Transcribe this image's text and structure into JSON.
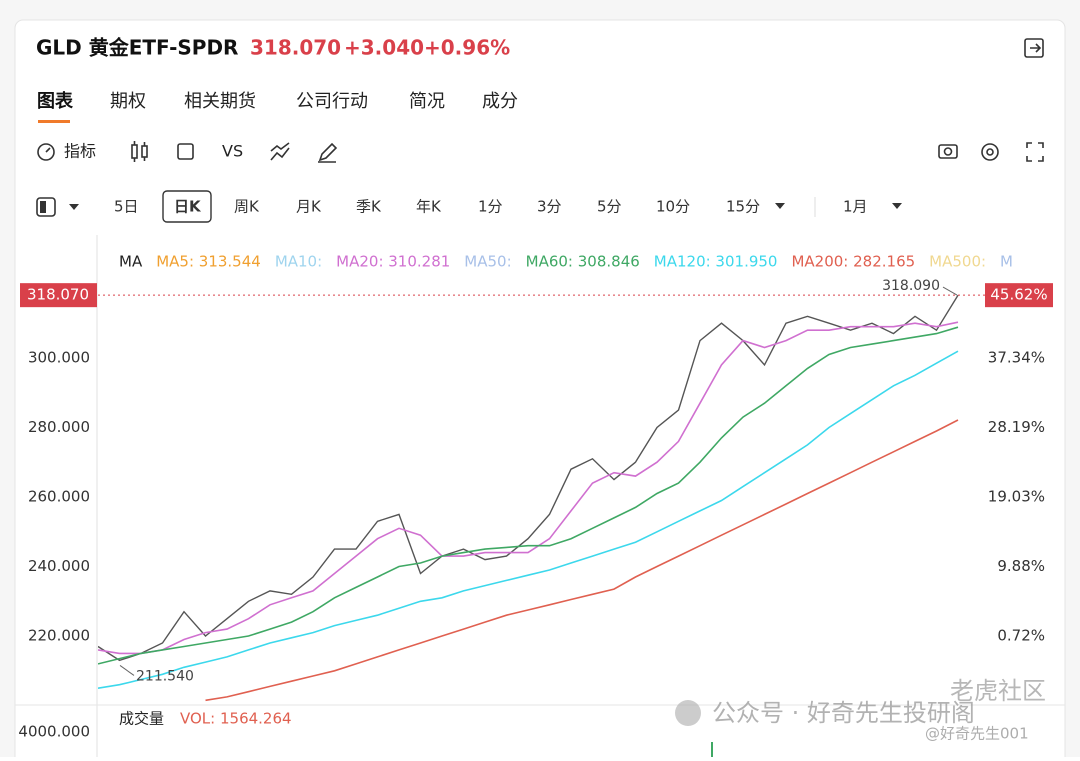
{
  "header": {
    "symbol": "GLD 黄金ETF-SPDR",
    "price": "318.070",
    "change": "+3.040",
    "change_pct": "+0.96%"
  },
  "tabs": [
    "图表",
    "期权",
    "相关期货",
    "公司行动",
    "简况",
    "成分"
  ],
  "toolbar": {
    "indicator": "指标",
    "vs": "VS"
  },
  "periods": [
    "5日",
    "日K",
    "周K",
    "月K",
    "季K",
    "年K",
    "1分",
    "3分",
    "5分",
    "10分",
    "15分",
    "1月"
  ],
  "chart_data": {
    "type": "line",
    "ma_legend": [
      {
        "label": "MA",
        "color": "#222"
      },
      {
        "label": "MA5: 313.544",
        "color": "#f0a030"
      },
      {
        "label": "MA10:",
        "color": "#9fd4ee"
      },
      {
        "label": "MA20: 310.281",
        "color": "#d070d0"
      },
      {
        "label": "MA50:",
        "color": "#a8c0e8"
      },
      {
        "label": "MA60: 308.846",
        "color": "#3fa864"
      },
      {
        "label": "MA120: 301.950",
        "color": "#3cd8ec"
      },
      {
        "label": "MA200: 282.165",
        "color": "#e06050"
      },
      {
        "label": "MA500:",
        "color": "#f0d890"
      },
      {
        "label": "M",
        "color": "#a8c0e8"
      }
    ],
    "series": [
      {
        "name": "Close",
        "color": "#555555",
        "values": [
          217,
          213,
          215,
          218,
          227,
          220,
          225,
          230,
          233,
          232,
          237,
          245,
          245,
          253,
          255,
          238,
          243,
          245,
          242,
          243,
          248,
          255,
          268,
          271,
          265,
          270,
          280,
          285,
          305,
          310,
          305,
          298,
          310,
          312,
          310,
          308,
          310,
          307,
          312,
          308,
          318.07
        ]
      },
      {
        "name": "MA20",
        "color": "#d070d0",
        "values": [
          216,
          215,
          215,
          216,
          219,
          221,
          222,
          225,
          229,
          231,
          233,
          238,
          243,
          248,
          251,
          249,
          243,
          243,
          244,
          244,
          244,
          248,
          256,
          264,
          267,
          266,
          270,
          276,
          287,
          298,
          305,
          303,
          305,
          308,
          308,
          309,
          309,
          309,
          310,
          309,
          310.281
        ]
      },
      {
        "name": "MA60",
        "color": "#3fa864",
        "values": [
          212,
          213.5,
          215,
          216,
          217,
          218,
          219,
          220,
          222,
          224,
          227,
          231,
          234,
          237,
          240,
          241,
          243,
          244,
          245,
          245.5,
          246,
          246,
          248,
          251,
          254,
          257,
          261,
          264,
          270,
          277,
          283,
          287,
          292,
          297,
          301,
          303,
          304,
          305,
          306,
          307,
          308.846
        ]
      },
      {
        "name": "MA120",
        "color": "#3cd8ec",
        "values": [
          205,
          206,
          207.5,
          209,
          211,
          212.5,
          214,
          216,
          218,
          219.5,
          221,
          223,
          224.5,
          226,
          228,
          230,
          231,
          233,
          234.5,
          236,
          237.5,
          239,
          241,
          243,
          245,
          247,
          250,
          253,
          256,
          259,
          263,
          267,
          271,
          275,
          280,
          284,
          288,
          292,
          295,
          298.5,
          301.95
        ]
      },
      {
        "name": "MA200",
        "color": "#e06050",
        "values": [
          null,
          null,
          null,
          null,
          null,
          201.5,
          202.5,
          204,
          205.5,
          207,
          208.5,
          210,
          212,
          214,
          216,
          218,
          220,
          222,
          224,
          226,
          227.5,
          229,
          230.5,
          232,
          233.5,
          237,
          240,
          243,
          246,
          249,
          252,
          255,
          258,
          261,
          264,
          267,
          270,
          273,
          276,
          279,
          282.165
        ]
      }
    ],
    "ylim": [
      201.6,
      332.5
    ],
    "yticks": [
      {
        "value": 220,
        "label": "220.000"
      },
      {
        "value": 240,
        "label": "240.000"
      },
      {
        "value": 260,
        "label": "260.000"
      },
      {
        "value": 280,
        "label": "280.000"
      },
      {
        "value": 300,
        "label": "300.000"
      }
    ],
    "y2lim": [
      -7.7,
      52.23
    ],
    "y2ticks": [
      {
        "value": 0.72,
        "label": "0.72%"
      },
      {
        "value": 9.88,
        "label": "9.88%"
      },
      {
        "value": 19.03,
        "label": "19.03%"
      },
      {
        "value": 28.19,
        "label": "28.19%"
      },
      {
        "value": 37.34,
        "label": "37.34%"
      }
    ],
    "current": {
      "value": 318.07,
      "label": "318.070",
      "pct_label": "45.62%"
    },
    "annotations": [
      {
        "value": 318.09,
        "label": "318.090"
      },
      {
        "value": 211.54,
        "label": "211.540"
      }
    ],
    "volume": {
      "title": "成交量",
      "label": "VOL: 1564.264",
      "tick": "4000.000"
    }
  },
  "watermark": {
    "wechat": "公众号 · 好奇先生投研阁",
    "tiger": "老虎社区",
    "handle": "@好奇先生001"
  }
}
